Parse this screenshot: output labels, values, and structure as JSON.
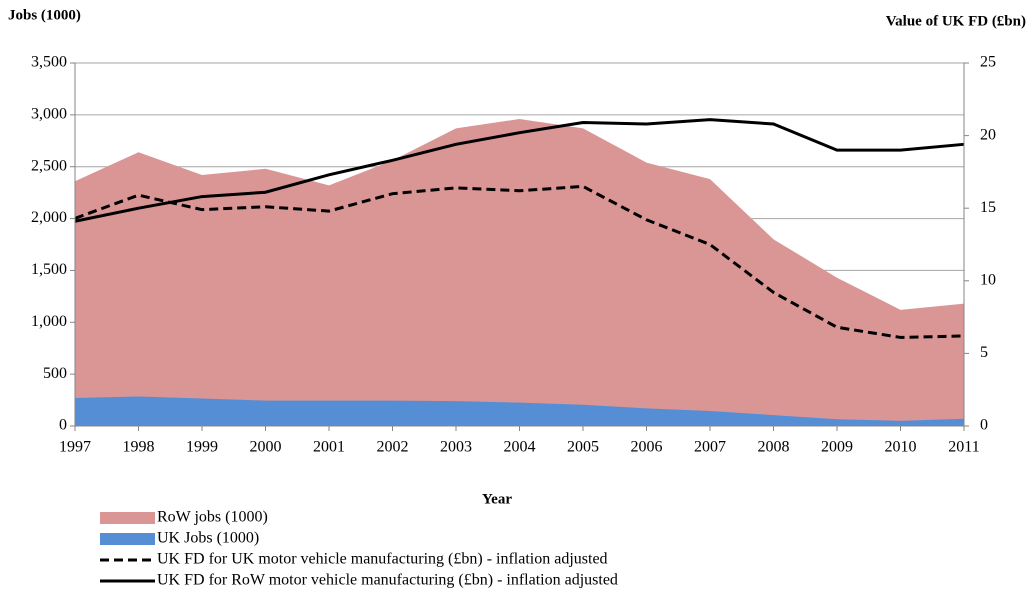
{
  "chart_data": {
    "type": "area-line",
    "y_label": "Jobs  (1000)",
    "y2_label": "Value of UK FD (£bn)",
    "x_label": "Year",
    "x": [
      1997,
      1998,
      1999,
      2000,
      2001,
      2002,
      2003,
      2004,
      2005,
      2006,
      2007,
      2008,
      2009,
      2010,
      2011
    ],
    "xlim": [
      1997,
      2011
    ],
    "xticks": [
      1997,
      1998,
      1999,
      2000,
      2001,
      2002,
      2003,
      2004,
      2005,
      2006,
      2007,
      2008,
      2009,
      2010,
      2011
    ],
    "ylim": [
      0,
      3500
    ],
    "yticks": [
      0,
      500,
      {
        "value": 1000,
        "label": "1,000"
      },
      {
        "value": 1500,
        "label": "1,500"
      },
      {
        "value": 2000,
        "label": "2,000"
      },
      {
        "value": 2500,
        "label": "2,500"
      },
      {
        "value": 3000,
        "label": "3,000"
      },
      {
        "value": 3500,
        "label": "3,500"
      }
    ],
    "y2lim": [
      0,
      25
    ],
    "y2ticks": [
      0,
      5,
      10,
      15,
      20,
      25
    ],
    "grid": true,
    "series": [
      {
        "name": "RoW jobs (1000)",
        "color": "#d99694",
        "style": "area",
        "values": [
          2360,
          2640,
          2420,
          2480,
          2320,
          2560,
          2870,
          2960,
          2870,
          2540,
          2380,
          1800,
          1430,
          1120,
          1180
        ]
      },
      {
        "name": "UK Jobs (1000)",
        "color": "#558ed5",
        "style": "area",
        "values": [
          270,
          285,
          265,
          245,
          245,
          245,
          240,
          225,
          205,
          170,
          145,
          105,
          65,
          50,
          70
        ]
      },
      {
        "name": "UK FD for UK motor vehicle manufacturing  (£bn) - inflation adjusted",
        "color": "#000000",
        "style": "dashed",
        "axis": "y2",
        "values": [
          14.3,
          15.9,
          14.9,
          15.1,
          14.8,
          16.0,
          16.4,
          16.2,
          16.5,
          14.2,
          12.5,
          9.2,
          6.8,
          6.1,
          6.2
        ]
      },
      {
        "name": "UK FD for RoW motor vehicle manufacturing  (£bn) - inflation adjusted",
        "color": "#000000",
        "style": "solid",
        "axis": "y2",
        "values": [
          14.1,
          15.0,
          15.8,
          16.1,
          17.3,
          18.3,
          19.4,
          20.2,
          20.9,
          20.8,
          21.1,
          20.8,
          19.0,
          19.0,
          19.4
        ]
      }
    ]
  }
}
